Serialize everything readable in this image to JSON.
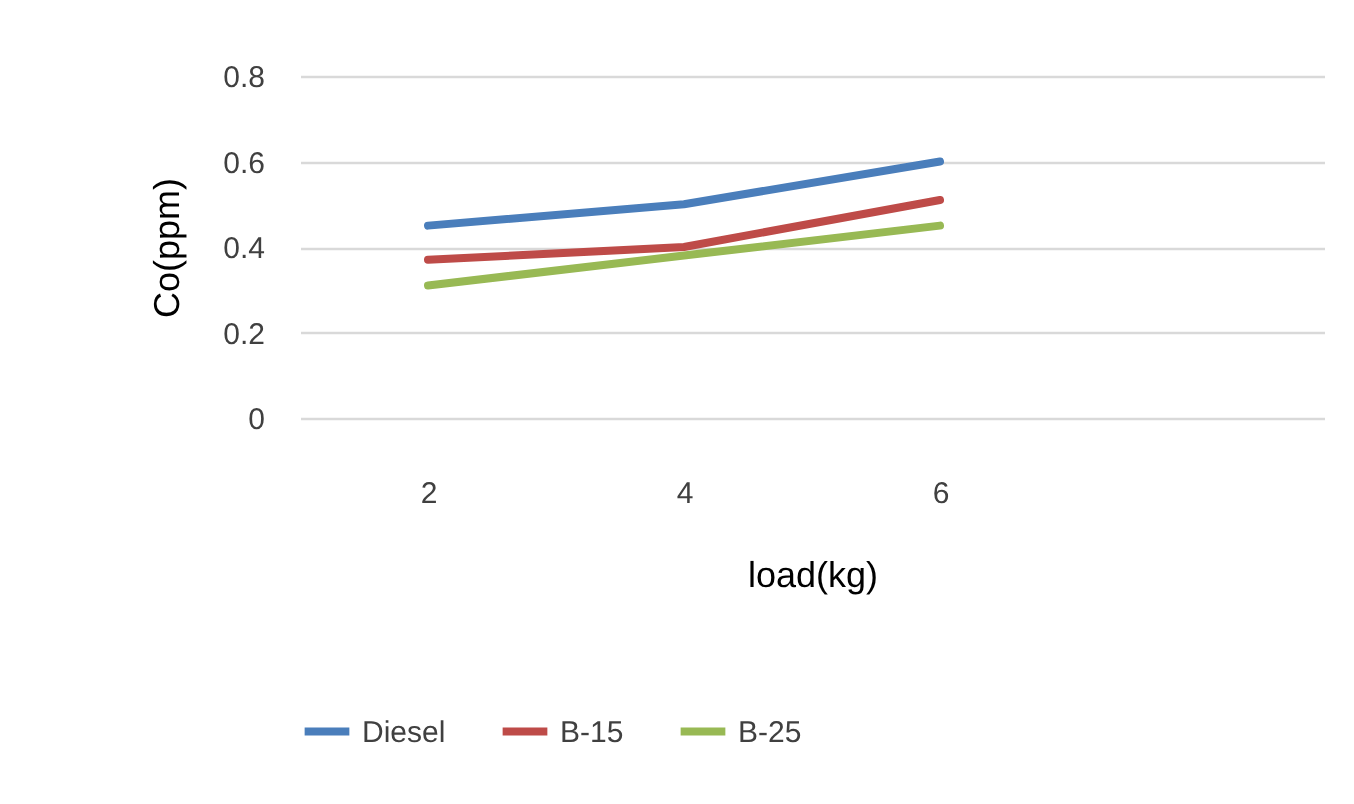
{
  "chart_data": {
    "type": "line",
    "xlabel": "load(kg)",
    "ylabel": "Co(ppm)",
    "categories": [
      "2",
      "4",
      "6",
      null
    ],
    "series": [
      {
        "name": "Diesel",
        "color": "#4a7ebb",
        "values": [
          0.45,
          0.5,
          0.6,
          null
        ]
      },
      {
        "name": "B-15",
        "color": "#be4b48",
        "values": [
          0.37,
          0.4,
          0.51,
          null
        ]
      },
      {
        "name": "B-25",
        "color": "#98b954",
        "values": [
          0.31,
          0.38,
          0.45,
          null
        ]
      }
    ],
    "ylim": [
      0,
      0.8
    ],
    "yticks": [
      0,
      0.2,
      0.4,
      0.6,
      0.8
    ],
    "grid": "y",
    "legend": "bottom",
    "marker": "none",
    "line_style": "solid"
  }
}
